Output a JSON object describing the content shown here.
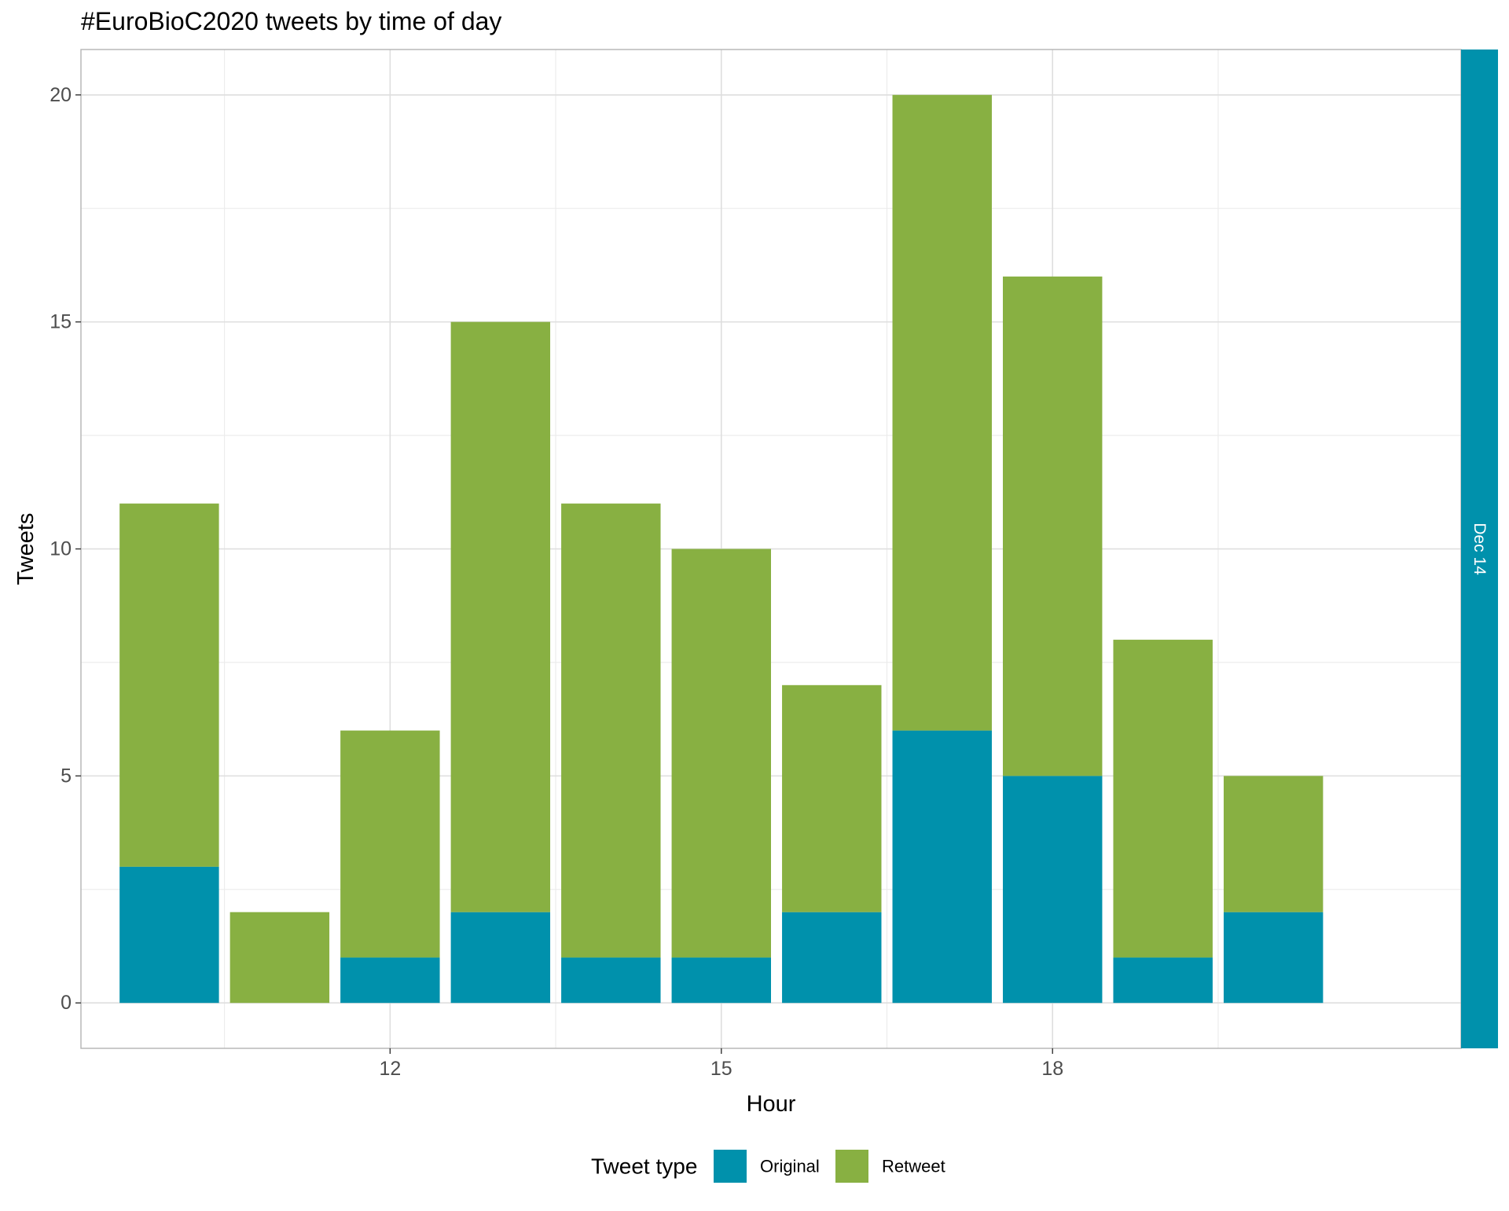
{
  "chart_data": {
    "type": "bar",
    "stacked": true,
    "title": "#EuroBioC2020 tweets by time of day",
    "xlabel": "Hour",
    "ylabel": "Tweets",
    "x": [
      10,
      11,
      12,
      13,
      14,
      15,
      16,
      17,
      18,
      19,
      20
    ],
    "x_ticks": [
      12,
      15,
      18
    ],
    "x_tick_labels": [
      "12",
      "15",
      "18"
    ],
    "xlim": [
      9.2,
      21.7
    ],
    "y_ticks": [
      0,
      5,
      10,
      15,
      20
    ],
    "y_tick_labels": [
      "0",
      "5",
      "10",
      "15",
      "20"
    ],
    "ylim": [
      -1,
      21
    ],
    "grid": true,
    "facet_label": "Dec 14",
    "series": [
      {
        "name": "Original",
        "color": "#0091AC",
        "values": [
          3,
          0,
          1,
          2,
          1,
          1,
          2,
          6,
          5,
          1,
          2
        ]
      },
      {
        "name": "Retweet",
        "color": "#88B042",
        "values": [
          8,
          2,
          5,
          13,
          10,
          9,
          5,
          14,
          11,
          7,
          3
        ]
      }
    ],
    "legend": {
      "title": "Tweet type",
      "position": "bottom"
    }
  }
}
